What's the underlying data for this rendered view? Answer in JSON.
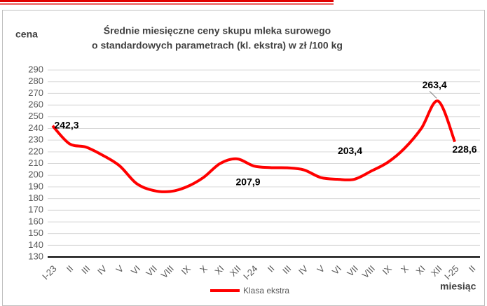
{
  "chart_data": {
    "type": "line",
    "title": "Średnie miesięczne ceny skupu mleka surowego",
    "subtitle": "o standardowych parametrach (kl. ekstra) w zł /100 kg",
    "y_label": "cena",
    "x_label": "miesiąc",
    "categories": [
      "I-23",
      "II",
      "III",
      "IV",
      "V",
      "VI",
      "VII",
      "VIII",
      "IX",
      "X",
      "XI",
      "XII",
      "I-24",
      "II",
      "III",
      "IV",
      "V",
      "VI",
      "VII",
      "VIII",
      "IX",
      "X",
      "XI",
      "XII",
      "I-25",
      "II"
    ],
    "series": [
      {
        "name": "Klasa ekstra",
        "color": "#ff0000",
        "values": [
          242.3,
          227,
          224,
          217,
          208,
          193,
          187,
          186,
          190,
          198,
          210,
          214,
          207.9,
          206.5,
          206.3,
          204.5,
          198,
          196.5,
          196.5,
          203.4,
          211,
          223,
          240,
          263.4,
          228.6,
          null
        ],
        "value_labels": [
          "242,3",
          null,
          null,
          null,
          null,
          null,
          null,
          null,
          null,
          null,
          null,
          null,
          "207,9",
          null,
          null,
          null,
          null,
          null,
          null,
          "203,4",
          null,
          null,
          null,
          "263,4",
          "228,6",
          null
        ]
      }
    ],
    "ylim": [
      130,
      290
    ],
    "yticks": [
      130,
      140,
      150,
      160,
      170,
      180,
      190,
      200,
      210,
      220,
      230,
      240,
      250,
      260,
      270,
      280,
      290
    ],
    "grid": true,
    "legend": "bottom"
  }
}
